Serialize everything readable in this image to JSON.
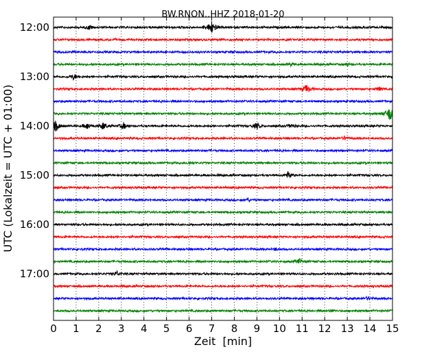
{
  "chart_data": {
    "type": "line",
    "title": "BW.RNON..HHZ 2018-01-20",
    "xlabel": "Zeit  [min]",
    "ylabel": "UTC (Lokalzeit = UTC + 01:00)",
    "xlim": [
      0,
      15
    ],
    "x_ticks": [
      "0",
      "1",
      "2",
      "3",
      "4",
      "5",
      "6",
      "7",
      "8",
      "9",
      "10",
      "11",
      "12",
      "13",
      "14",
      "15"
    ],
    "y_tick_labels": [
      "12:00",
      "13:00",
      "14:00",
      "15:00",
      "16:00",
      "17:00"
    ],
    "grid": "vertical dotted at each minute",
    "trace_colors": [
      "#000000",
      "#ff0000",
      "#0000ff",
      "#008000"
    ],
    "traces": [
      {
        "start": "12:00",
        "events": [
          {
            "min": 1.6,
            "amp": 0.35
          },
          {
            "min": 7.0,
            "amp": 1.0
          }
        ]
      },
      {
        "start": "12:15",
        "events": []
      },
      {
        "start": "12:30",
        "events": []
      },
      {
        "start": "12:45",
        "events": [
          {
            "min": 10.5,
            "amp": 0.25
          },
          {
            "min": 13.0,
            "amp": 0.25
          }
        ]
      },
      {
        "start": "13:00",
        "events": [
          {
            "min": 0.9,
            "amp": 0.45
          }
        ]
      },
      {
        "start": "13:15",
        "events": [
          {
            "min": 11.2,
            "amp": 0.7
          },
          {
            "min": 14.4,
            "amp": 0.3
          }
        ]
      },
      {
        "start": "13:30",
        "events": []
      },
      {
        "start": "13:45",
        "events": [
          {
            "min": 14.9,
            "amp": 1.2
          }
        ]
      },
      {
        "start": "14:00",
        "events": [
          {
            "min": 0.1,
            "amp": 0.8
          },
          {
            "min": 1.5,
            "amp": 0.5
          },
          {
            "min": 2.2,
            "amp": 0.6
          },
          {
            "min": 3.1,
            "amp": 0.5
          },
          {
            "min": 9.0,
            "amp": 0.5
          },
          {
            "min": 10.5,
            "amp": 0.35
          }
        ]
      },
      {
        "start": "14:15",
        "events": [
          {
            "min": 12.9,
            "amp": 0.3
          }
        ]
      },
      {
        "start": "14:30",
        "events": []
      },
      {
        "start": "14:45",
        "events": [
          {
            "min": 6.0,
            "amp": 0.25
          }
        ]
      },
      {
        "start": "15:00",
        "events": [
          {
            "min": 10.4,
            "amp": 0.6
          }
        ]
      },
      {
        "start": "15:15",
        "events": []
      },
      {
        "start": "15:30",
        "events": [
          {
            "min": 8.6,
            "amp": 0.25
          }
        ]
      },
      {
        "start": "15:45",
        "events": []
      },
      {
        "start": "16:00",
        "events": []
      },
      {
        "start": "16:15",
        "events": []
      },
      {
        "start": "16:30",
        "events": [
          {
            "min": 9.8,
            "amp": 0.2
          }
        ]
      },
      {
        "start": "16:45",
        "events": [
          {
            "min": 10.9,
            "amp": 0.4
          }
        ]
      },
      {
        "start": "17:00",
        "events": [
          {
            "min": 2.8,
            "amp": 0.4
          }
        ]
      },
      {
        "start": "17:15",
        "events": []
      },
      {
        "start": "17:30",
        "events": [
          {
            "min": 13.9,
            "amp": 0.25
          }
        ]
      },
      {
        "start": "17:45",
        "events": [
          {
            "min": 12.3,
            "amp": 0.2
          }
        ]
      }
    ]
  }
}
